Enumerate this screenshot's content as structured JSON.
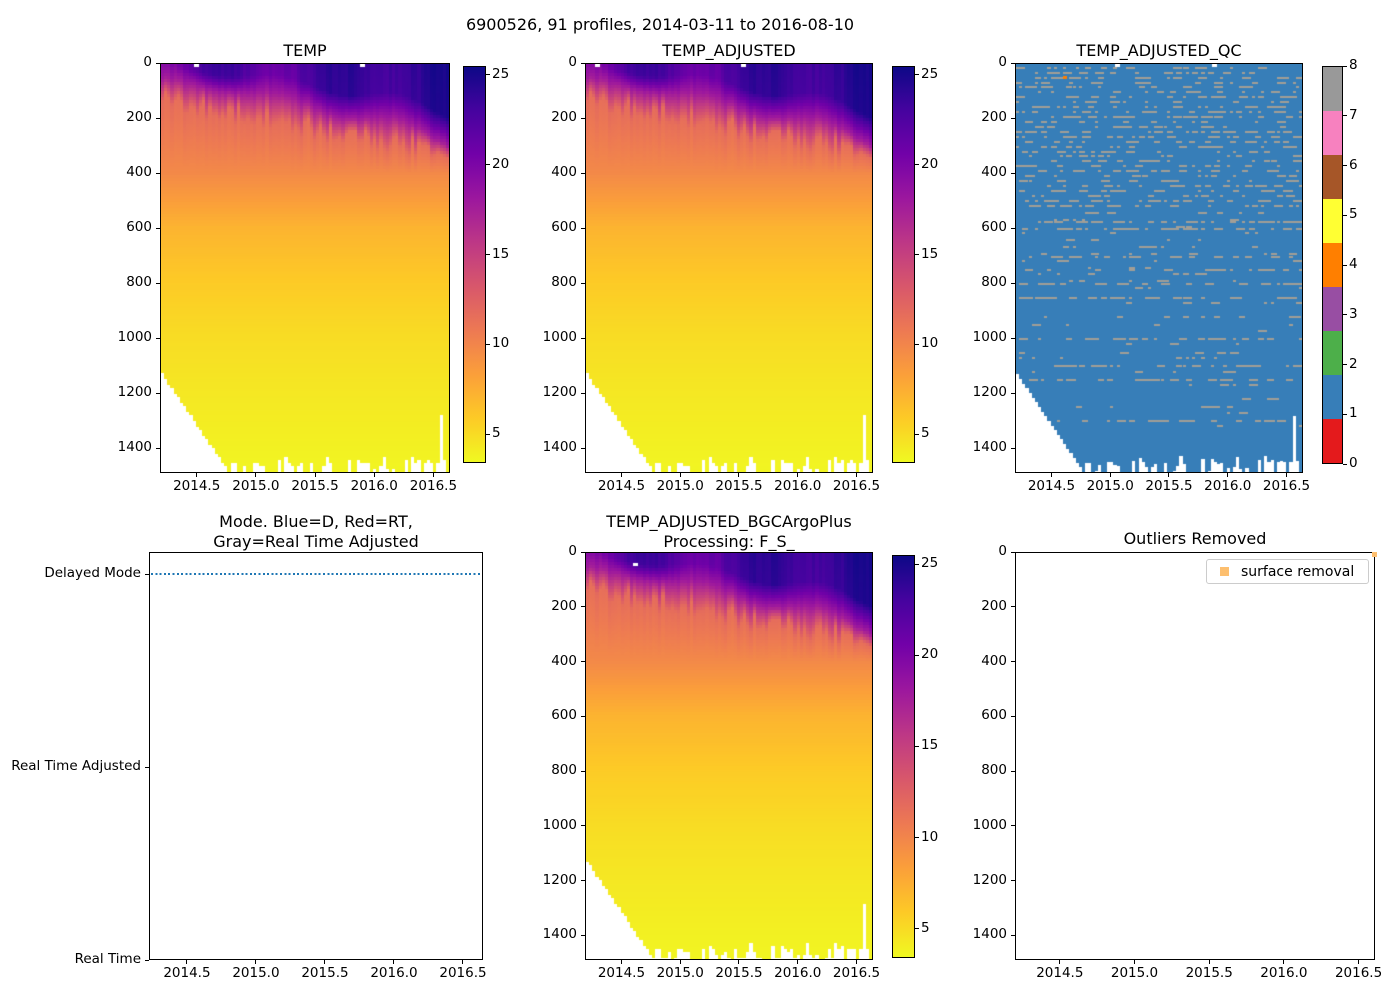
{
  "figure": {
    "suptitle": "6900526, 91 profiles, 2014-03-11 to 2016-08-10",
    "float_id": "6900526",
    "n_profiles": 91,
    "date_start": "2014-03-11",
    "date_end": "2016-08-10"
  },
  "subplots": {
    "temp": {
      "title": "TEMP"
    },
    "temp_adjusted": {
      "title": "TEMP_ADJUSTED"
    },
    "temp_adjusted_qc": {
      "title": "TEMP_ADJUSTED_QC"
    },
    "mode": {
      "title_line1": "Mode. Blue=D, Red=RT,",
      "title_line2": "Gray=Real Time Adjusted"
    },
    "bgc": {
      "title_line1": "TEMP_ADJUSTED_BGCArgoPlus",
      "title_line2": "Processing: F_S_"
    },
    "outliers": {
      "title": "Outliers Removed",
      "legend": {
        "label": "surface removal",
        "marker_color": "#fdbf6f"
      }
    }
  },
  "chart_data": [
    {
      "panel": "temp",
      "type": "heatmap",
      "title": "TEMP",
      "x_range": [
        2014.19,
        2016.64
      ],
      "x_tick_values": [
        2014.5,
        2015.0,
        2015.5,
        2016.0,
        2016.5
      ],
      "x_tick_labels": [
        "2014.5",
        "2015.0",
        "2015.5",
        "2016.0",
        "2016.5"
      ],
      "y_range": [
        0,
        1490
      ],
      "y_down": true,
      "y_tick_values": [
        0,
        200,
        400,
        600,
        800,
        1000,
        1200,
        1400
      ],
      "y_tick_labels": [
        "0",
        "200",
        "400",
        "600",
        "800",
        "1000",
        "1200",
        "1400"
      ],
      "n_profiles": 91,
      "colormap": "plasma_r",
      "vmin": 3.4,
      "vmax": 25.5,
      "colorbar": {
        "range": [
          3.4,
          25.5
        ],
        "tick_values": [
          25,
          20,
          15,
          10,
          5
        ],
        "tick_labels": [
          "25",
          "20",
          "15",
          "10",
          "5"
        ]
      },
      "representative_profile": {
        "depth_m": [
          0,
          60,
          150,
          250,
          400,
          600,
          800,
          1000,
          1200,
          1490
        ],
        "temp_c": [
          23.5,
          21.0,
          16.0,
          12.0,
          9.7,
          7.1,
          5.8,
          4.9,
          4.3,
          3.6
        ]
      },
      "surface_temp_range_c": [
        19.5,
        26.0
      ],
      "render": {
        "season_phase": 2014.45,
        "sst_base": 21.6,
        "sst_amp": 2.1,
        "sst_trend": 3.2,
        "mld_base": 16,
        "mld_growth": 155,
        "mld_seasonal": 28,
        "purple_base": 45,
        "purple_growth": 60,
        "thermo_base": 140,
        "thermo_growth": 190,
        "thermo_jitter": 80,
        "shallow_start": 1125,
        "full_depth": 1497,
        "full_from": 2014.78,
        "short_profiles": [
          {
            "index": 88,
            "max_depth_m": 1285
          }
        ],
        "surface_gaps": [
          [
            2014.47,
            0
          ],
          [
            2015.88,
            0
          ]
        ]
      }
    },
    {
      "panel": "temp_adjusted",
      "type": "heatmap",
      "title": "TEMP_ADJUSTED",
      "x_range": [
        2014.19,
        2016.64
      ],
      "x_tick_values": [
        2014.5,
        2015.0,
        2015.5,
        2016.0,
        2016.5
      ],
      "x_tick_labels": [
        "2014.5",
        "2015.0",
        "2015.5",
        "2016.0",
        "2016.5"
      ],
      "y_range": [
        0,
        1490
      ],
      "y_down": true,
      "y_tick_values": [
        0,
        200,
        400,
        600,
        800,
        1000,
        1200,
        1400
      ],
      "y_tick_labels": [
        "0",
        "200",
        "400",
        "600",
        "800",
        "1000",
        "1200",
        "1400"
      ],
      "n_profiles": 91,
      "colormap": "plasma_r",
      "vmin": 3.4,
      "vmax": 25.5,
      "colorbar": {
        "range": [
          3.4,
          25.5
        ],
        "tick_values": [
          25,
          20,
          15,
          10,
          5
        ],
        "tick_labels": [
          "25",
          "20",
          "15",
          "10",
          "5"
        ]
      },
      "representative_profile": {
        "depth_m": [
          0,
          60,
          150,
          250,
          400,
          600,
          800,
          1000,
          1200,
          1490
        ],
        "temp_c": [
          23.5,
          21.0,
          16.0,
          12.0,
          9.7,
          7.1,
          5.8,
          4.9,
          4.3,
          3.6
        ]
      },
      "render": {
        "season_phase": 2014.45,
        "sst_base": 21.6,
        "sst_amp": 2.1,
        "sst_trend": 3.2,
        "mld_base": 16,
        "mld_growth": 155,
        "mld_seasonal": 28,
        "purple_base": 45,
        "purple_growth": 60,
        "thermo_base": 140,
        "thermo_growth": 190,
        "thermo_jitter": 80,
        "shallow_start": 1125,
        "full_depth": 1497,
        "full_from": 2014.78,
        "short_profiles": [
          {
            "index": 88,
            "max_depth_m": 1285
          }
        ],
        "surface_gaps": [
          [
            2014.27,
            0
          ],
          [
            2015.52,
            0
          ]
        ]
      }
    },
    {
      "panel": "temp_adjusted_qc",
      "type": "heatmap",
      "title": "TEMP_ADJUSTED_QC",
      "x_range": [
        2014.19,
        2016.64
      ],
      "x_tick_values": [
        2014.5,
        2015.0,
        2015.5,
        2016.0,
        2016.5
      ],
      "x_tick_labels": [
        "2014.5",
        "2015.0",
        "2015.5",
        "2016.0",
        "2016.5"
      ],
      "y_range": [
        0,
        1490
      ],
      "y_down": true,
      "y_tick_values": [
        0,
        200,
        400,
        600,
        800,
        1000,
        1200,
        1400
      ],
      "y_tick_labels": [
        "0",
        "200",
        "400",
        "600",
        "800",
        "1000",
        "1200",
        "1400"
      ],
      "n_profiles": 91,
      "qc_values": [
        0,
        1,
        2,
        3,
        4,
        5,
        6,
        7,
        8
      ],
      "palette": {
        "0": "#e41a1c",
        "1": "#377eb8",
        "2": "#4daf4a",
        "3": "#984ea3",
        "4": "#ff7f00",
        "5": "#ffff33",
        "6": "#a65628",
        "7": "#f781bf",
        "8": "#999999"
      },
      "dominant_qc": 1,
      "dash_qc": 8,
      "colorbar": {
        "range": [
          0,
          8
        ],
        "tick_values": [
          8,
          7,
          6,
          5,
          4,
          3,
          2,
          1,
          0
        ],
        "tick_labels": [
          "8",
          "7",
          "6",
          "5",
          "4",
          "3",
          "2",
          "1",
          "0"
        ],
        "segments_bottom_to_top": [
          "#e41a1c",
          "#377eb8",
          "#4daf4a",
          "#984ea3",
          "#ff7f00",
          "#ffff33",
          "#a65628",
          "#f781bf",
          "#999999"
        ]
      },
      "render": {
        "background_color": "#377eb8",
        "dash_color": "#a29e96",
        "bands": [
          {
            "from": 10,
            "to": 520,
            "step": 18,
            "p": 0.2
          },
          {
            "from": 540,
            "to": 820,
            "step": 25,
            "p": 0.06
          },
          {
            "from": 870,
            "to": 1320,
            "step": 50,
            "p": 0.05
          }
        ],
        "feature_rows": {
          "575": 0.3,
          "600": 0.32,
          "700": 0.22,
          "750": 0.27,
          "800": 0.25,
          "850": 0.33,
          "950": 0.1,
          "1000": 0.32,
          "1050": 0.08,
          "1100": 0.22,
          "1150": 0.3,
          "1250": 0.1,
          "1300": 0.3
        },
        "qc4_point": [
          2014.59,
          44
        ],
        "shallow_start": 1125,
        "full_depth": 1497,
        "full_from": 2014.78,
        "short_profiles": [
          {
            "index": 88,
            "max_depth_m": 1285
          }
        ],
        "surface_gaps": [
          [
            2015.04,
            0
          ],
          [
            2015.87,
            0
          ]
        ]
      }
    },
    {
      "panel": "mode",
      "type": "line",
      "x_range": [
        2014.225,
        2016.645
      ],
      "x_tick_values": [
        2014.5,
        2015.0,
        2015.5,
        2016.0,
        2016.5
      ],
      "x_tick_labels": [
        "2014.5",
        "2015.0",
        "2015.5",
        "2016.0",
        "2016.5"
      ],
      "y_range": [
        0,
        2.114
      ],
      "y_down": false,
      "y_tick_values": [
        2,
        1,
        0
      ],
      "y_tick_labels": [
        "Delayed Mode",
        "Real Time Adjusted",
        "Real Time"
      ],
      "series": [
        {
          "name": "mode",
          "color": "#1f77b4",
          "style": "dotted",
          "y_value": 2,
          "y_label": "Delayed Mode",
          "n_points": 91,
          "x_span": [
            2014.225,
            2016.645
          ]
        }
      ]
    },
    {
      "panel": "bgc",
      "type": "heatmap",
      "title": "TEMP_ADJUSTED_BGCArgoPlus Processing: F_S_",
      "x_range": [
        2014.19,
        2016.64
      ],
      "x_tick_values": [
        2014.5,
        2015.0,
        2015.5,
        2016.0,
        2016.5
      ],
      "x_tick_labels": [
        "2014.5",
        "2015.0",
        "2015.5",
        "2016.0",
        "2016.5"
      ],
      "y_range": [
        0,
        1490
      ],
      "y_down": true,
      "y_tick_values": [
        0,
        200,
        400,
        600,
        800,
        1000,
        1200,
        1400
      ],
      "y_tick_labels": [
        "0",
        "200",
        "400",
        "600",
        "800",
        "1000",
        "1200",
        "1400"
      ],
      "n_profiles": 91,
      "colormap": "plasma_r",
      "vmin": 3.4,
      "vmax": 25.5,
      "colorbar": {
        "range": [
          3.4,
          25.5
        ],
        "tick_values": [
          25,
          20,
          15,
          10,
          5
        ],
        "tick_labels": [
          "25",
          "20",
          "15",
          "10",
          "5"
        ]
      },
      "representative_profile": {
        "depth_m": [
          0,
          60,
          150,
          250,
          400,
          600,
          800,
          1000,
          1200,
          1490
        ],
        "temp_c": [
          23.5,
          21.0,
          16.0,
          12.0,
          9.7,
          7.1,
          5.8,
          4.9,
          4.3,
          3.6
        ]
      },
      "render": {
        "season_phase": 2014.45,
        "sst_base": 21.6,
        "sst_amp": 2.1,
        "sst_trend": 3.2,
        "mld_base": 16,
        "mld_growth": 155,
        "mld_seasonal": 28,
        "purple_base": 45,
        "purple_growth": 60,
        "thermo_base": 140,
        "thermo_growth": 190,
        "thermo_jitter": 80,
        "shallow_start": 1125,
        "full_depth": 1497,
        "full_from": 2014.78,
        "short_profiles": [
          {
            "index": 88,
            "max_depth_m": 1285
          }
        ],
        "surface_gaps": [
          [
            2014.59,
            35
          ]
        ]
      }
    },
    {
      "panel": "outliers",
      "type": "scatter",
      "x_range": [
        2014.2,
        2016.61
      ],
      "x_tick_values": [
        2014.5,
        2015.0,
        2015.5,
        2016.0,
        2016.5
      ],
      "x_tick_labels": [
        "2014.5",
        "2015.0",
        "2015.5",
        "2016.0",
        "2016.5"
      ],
      "y_range": [
        0,
        1490
      ],
      "y_down": true,
      "y_tick_values": [
        0,
        200,
        400,
        600,
        800,
        1000,
        1200,
        1400
      ],
      "y_tick_labels": [
        "0",
        "200",
        "400",
        "600",
        "800",
        "1000",
        "1200",
        "1400"
      ],
      "legend_position": "upper right",
      "series": [
        {
          "name": "surface removal",
          "color": "#fdbf6f",
          "marker": "square",
          "points": [
            [
              2016.6,
              4
            ]
          ]
        }
      ]
    }
  ]
}
